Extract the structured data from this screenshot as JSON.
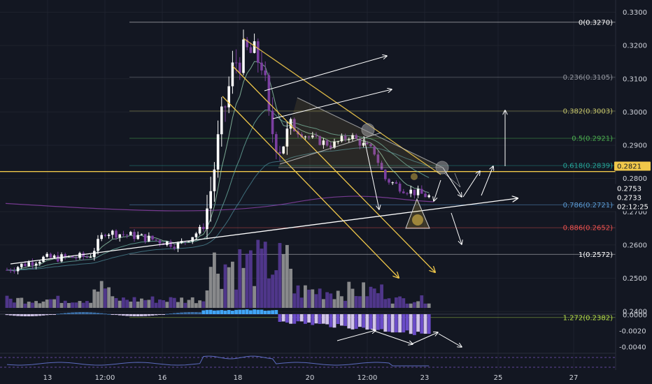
{
  "chart_data": {
    "type": "candlestick",
    "price_axis": {
      "ticks": [
        "0.3300",
        "0.3200",
        "0.3100",
        "0.3000",
        "0.2900",
        "0.2800",
        "0.2700",
        "0.2600",
        "0.2500",
        "0.2400"
      ],
      "ylim": [
        0.235,
        0.332
      ]
    },
    "macd_axis": {
      "ticks": [
        "0.0000",
        "-0.0020",
        "-0.0040"
      ]
    },
    "x_ticks": [
      "13",
      "12:00",
      "16",
      "18",
      "20",
      "12:00",
      "23",
      "25",
      "27"
    ],
    "price_labels": [
      {
        "value": "0.2821",
        "bg": "#f0c84a",
        "fg": "#131722"
      },
      {
        "value": "0.2753",
        "bg": "#131722",
        "fg": "#ffffff"
      },
      {
        "value": "0.2733",
        "bg": "#131722",
        "fg": "#ffffff"
      },
      {
        "value": "02:12:25",
        "bg": "#131722",
        "fg": "#ffffff"
      }
    ],
    "fib_levels": [
      {
        "label": "0(0.3270)",
        "price": 0.327,
        "color": "#ffffff"
      },
      {
        "label": "0.236(0.3105)",
        "price": 0.3105,
        "color": "#9598a1"
      },
      {
        "label": "0.382(0.3003)",
        "price": 0.3003,
        "color": "#c4c46a"
      },
      {
        "label": "0.5(0.2921)",
        "price": 0.2921,
        "color": "#4caf50"
      },
      {
        "label": "0.618(0.2839)",
        "price": 0.2839,
        "color": "#26a69a"
      },
      {
        "label": "0.786(0.2721)",
        "price": 0.2721,
        "color": "#5b9bd5"
      },
      {
        "label": "0.886(0.2652)",
        "price": 0.2652,
        "color": "#ef5350"
      },
      {
        "label": "1(0.2572)",
        "price": 0.2572,
        "color": "#ffffff"
      },
      {
        "label": "1.272(0.2382)",
        "price": 0.2382,
        "color": "#b8e04a"
      }
    ],
    "horizontal_line": {
      "price": 0.2821,
      "color": "#f0c84a"
    },
    "colors": {
      "up": "#ffffff",
      "down": "#7b3fa0",
      "volume_up": "#9e9e9e",
      "volume_down": "#5a3c9c",
      "macd_pos": "#42a5f5",
      "macd_neg": "#6a4cc8",
      "macd_neg_light": "#d1c4e9"
    }
  }
}
